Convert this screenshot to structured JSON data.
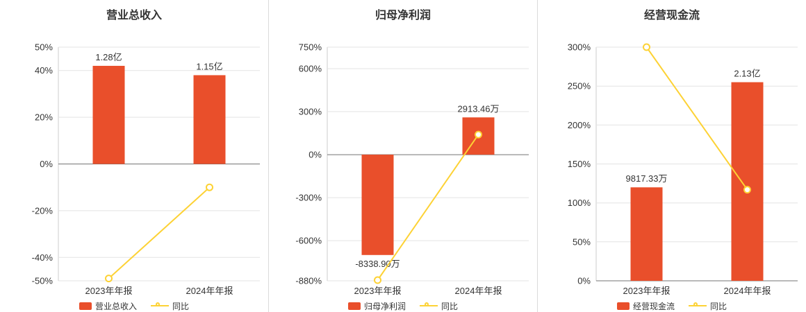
{
  "colors": {
    "bar": "#E94F2B",
    "line": "#FDD235",
    "grid": "#E3E3E3",
    "axis": "#737373",
    "axis_light": "#CCCCCC",
    "divider": "#DBDBDB",
    "text": "#333333",
    "marker_fill": "#FFFFFF"
  },
  "chart_data": [
    {
      "type": "bar+line",
      "title": "营业总收入",
      "categories": [
        "2023年年报",
        "2024年年报"
      ],
      "ylim": [
        -50,
        50
      ],
      "yticks": [
        50,
        40,
        20,
        0,
        -20,
        -40,
        -50
      ],
      "ytick_labels": [
        "50%",
        "40%",
        "20%",
        "0%",
        "-20%",
        "-40%",
        "-50%"
      ],
      "grid": true,
      "legend_position": "bottom",
      "bar_series": {
        "name": "营业总收入",
        "value_labels": [
          "1.28亿",
          "1.15亿"
        ],
        "axis_values": [
          42,
          38
        ]
      },
      "line_series": {
        "name": "同比",
        "unit": "%",
        "values": [
          -49,
          -10
        ]
      }
    },
    {
      "type": "bar+line",
      "title": "归母净利润",
      "categories": [
        "2023年年报",
        "2024年年报"
      ],
      "ylim": [
        -880,
        750
      ],
      "yticks": [
        750,
        600,
        300,
        0,
        -300,
        -600,
        -880
      ],
      "ytick_labels": [
        "750%",
        "600%",
        "300%",
        "0%",
        "-300%",
        "-600%",
        "-880%"
      ],
      "grid": true,
      "legend_position": "bottom",
      "bar_series": {
        "name": "归母净利润",
        "value_labels": [
          "-8338.90万",
          "2913.46万"
        ],
        "axis_values": [
          -700,
          260
        ]
      },
      "line_series": {
        "name": "同比",
        "unit": "%",
        "values": [
          -875,
          140
        ]
      }
    },
    {
      "type": "bar+line",
      "title": "经营现金流",
      "categories": [
        "2023年年报",
        "2024年年报"
      ],
      "ylim": [
        0,
        300
      ],
      "yticks": [
        300,
        250,
        200,
        150,
        100,
        50,
        0
      ],
      "ytick_labels": [
        "300%",
        "250%",
        "200%",
        "150%",
        "100%",
        "50%",
        "0%"
      ],
      "grid": true,
      "legend_position": "bottom",
      "bar_series": {
        "name": "经营现金流",
        "value_labels": [
          "9817.33万",
          "2.13亿"
        ],
        "axis_values": [
          120,
          255
        ]
      },
      "line_series": {
        "name": "同比",
        "unit": "%",
        "values": [
          300,
          117
        ]
      }
    }
  ]
}
